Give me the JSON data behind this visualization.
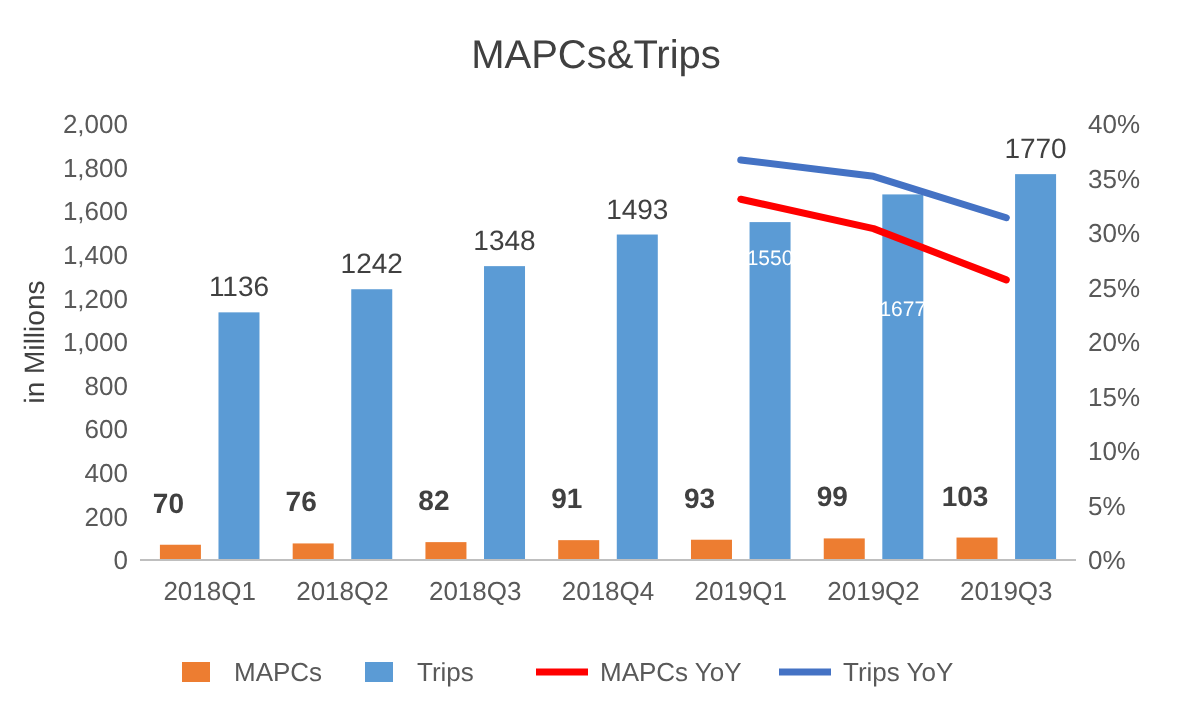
{
  "chart_data": {
    "type": "bar",
    "title": "MAPCs&Trips",
    "ylabel": "in Millions",
    "categories": [
      "2018Q1",
      "2018Q2",
      "2018Q3",
      "2018Q4",
      "2019Q1",
      "2019Q2",
      "2019Q3"
    ],
    "series": [
      {
        "name": "MAPCs",
        "color": "#ed7d31",
        "values": [
          70,
          76,
          82,
          91,
          93,
          99,
          103
        ],
        "value_labels": [
          "70",
          "76",
          "82",
          "91",
          "93",
          "99",
          "103"
        ]
      },
      {
        "name": "Trips",
        "color": "#5b9bd5",
        "values": [
          1136,
          1242,
          1348,
          1493,
          1550,
          1677,
          1770
        ],
        "value_labels": [
          "1136",
          "1242",
          "1348",
          "1493",
          "1550",
          "1677",
          "1770"
        ]
      },
      {
        "name": "MAPCs YoY",
        "type": "line",
        "axis": "y2",
        "color": "#ff0000",
        "values": [
          null,
          null,
          null,
          null,
          33.1,
          30.4,
          25.7
        ]
      },
      {
        "name": "Trips YoY",
        "type": "line",
        "axis": "y2",
        "color": "#4472c4",
        "values": [
          null,
          null,
          null,
          null,
          36.7,
          35.2,
          31.4
        ]
      }
    ],
    "ylim": [
      0,
      2000
    ],
    "yticks": [
      {
        "value": 0,
        "label": "0"
      },
      {
        "value": 200,
        "label": "200"
      },
      {
        "value": 400,
        "label": "400"
      },
      {
        "value": 600,
        "label": "600"
      },
      {
        "value": 800,
        "label": "800"
      },
      {
        "value": 1000,
        "label": "1,000"
      },
      {
        "value": 1200,
        "label": "1,200"
      },
      {
        "value": 1400,
        "label": "1,400"
      },
      {
        "value": 1600,
        "label": "1,600"
      },
      {
        "value": 1800,
        "label": "1,800"
      },
      {
        "value": 2000,
        "label": "2,000"
      }
    ],
    "y2lim": [
      0,
      40
    ],
    "y2ticks": [
      {
        "value": 0,
        "label": "0%"
      },
      {
        "value": 5,
        "label": "5%"
      },
      {
        "value": 10,
        "label": "10%"
      },
      {
        "value": 15,
        "label": "15%"
      },
      {
        "value": 20,
        "label": "20%"
      },
      {
        "value": 25,
        "label": "25%"
      },
      {
        "value": 30,
        "label": "30%"
      },
      {
        "value": 35,
        "label": "35%"
      },
      {
        "value": 40,
        "label": "40%"
      }
    ],
    "legend": "bottom",
    "marker": "none",
    "line_style": "solid"
  }
}
